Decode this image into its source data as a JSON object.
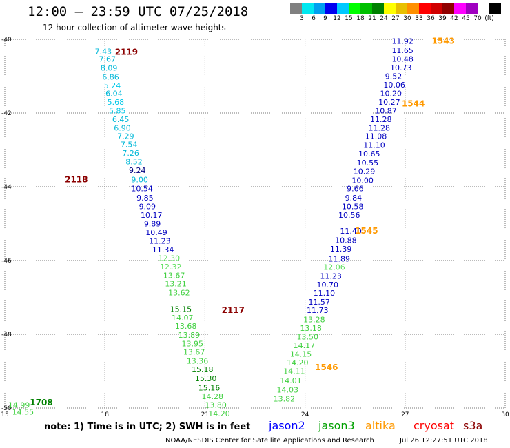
{
  "header": {
    "title": "12:00 – 23:59 UTC 07/25/2018",
    "subtitle": "12 hour collection of altimeter wave heights"
  },
  "scale": {
    "colors": [
      "#808080",
      "#00e8f0",
      "#00a0f0",
      "#0000f0",
      "#00c8ff",
      "#00ff00",
      "#00c000",
      "#008000",
      "#ffff00",
      "#e8c000",
      "#ff9000",
      "#ff0000",
      "#d00000",
      "#900000",
      "#ff00ff",
      "#a000c0",
      "#ffffff",
      "#000000"
    ],
    "labels": [
      "3",
      "6",
      "9",
      "12",
      "15",
      "18",
      "21",
      "24",
      "27",
      "30",
      "33",
      "36",
      "39",
      "42",
      "45",
      "70",
      "(ft)"
    ]
  },
  "chart_data": {
    "type": "scatter",
    "xlim": [
      15,
      30
    ],
    "ylim": [
      -50,
      -40
    ],
    "x_ticks": [
      "15",
      "18",
      "21",
      "24",
      "27",
      "30"
    ],
    "y_ticks": [
      "-40",
      "-42",
      "-44",
      "-46",
      "-48",
      "-50"
    ],
    "passes": [
      {
        "label": "2119",
        "color": "#8b0000",
        "x": 18.3,
        "y": -40.35
      },
      {
        "label": "2118",
        "color": "#8b0000",
        "x": 16.8,
        "y": -43.8
      },
      {
        "label": "2117",
        "color": "#8b0000",
        "x": 21.5,
        "y": -47.35
      },
      {
        "label": "1708",
        "color": "#008000",
        "x": 15.75,
        "y": -49.85
      },
      {
        "label": "1543",
        "color": "#ff9900",
        "x": 27.8,
        "y": -40.05
      },
      {
        "label": "1544",
        "color": "#ff9900",
        "x": 26.9,
        "y": -41.75
      },
      {
        "label": "1545",
        "color": "#ff9900",
        "x": 25.5,
        "y": -45.2
      },
      {
        "label": "1546",
        "color": "#ff9900",
        "x": 24.3,
        "y": -48.9
      }
    ],
    "points": [
      {
        "v": "7.43",
        "x": 17.7,
        "y": -40.33,
        "c": "#00b8d8"
      },
      {
        "v": "7.67",
        "x": 17.82,
        "y": -40.53,
        "c": "#00b8d8"
      },
      {
        "v": "8.09",
        "x": 17.87,
        "y": -40.78,
        "c": "#00b8d8"
      },
      {
        "v": "6.86",
        "x": 17.92,
        "y": -41.02,
        "c": "#00b8d8"
      },
      {
        "v": "5.24",
        "x": 17.97,
        "y": -41.25,
        "c": "#00c8e8"
      },
      {
        "v": "6.04",
        "x": 18.02,
        "y": -41.47,
        "c": "#00b8d8"
      },
      {
        "v": "5.68",
        "x": 18.07,
        "y": -41.7,
        "c": "#00c8e8"
      },
      {
        "v": "5.85",
        "x": 18.12,
        "y": -41.93,
        "c": "#00c8e8"
      },
      {
        "v": "6.45",
        "x": 18.22,
        "y": -42.17,
        "c": "#00b8d8"
      },
      {
        "v": "6.90",
        "x": 18.27,
        "y": -42.4,
        "c": "#00b8d8"
      },
      {
        "v": "7.29",
        "x": 18.37,
        "y": -42.63,
        "c": "#00b8d8"
      },
      {
        "v": "7.54",
        "x": 18.47,
        "y": -42.85,
        "c": "#00b8d8"
      },
      {
        "v": "7.26",
        "x": 18.52,
        "y": -43.08,
        "c": "#00b8d8"
      },
      {
        "v": "8.52",
        "x": 18.62,
        "y": -43.32,
        "c": "#00b8d8"
      },
      {
        "v": "9.24",
        "x": 18.72,
        "y": -43.55,
        "c": "#000080"
      },
      {
        "v": "9.00",
        "x": 18.79,
        "y": -43.8,
        "c": "#00b8d8"
      },
      {
        "v": "10.54",
        "x": 18.79,
        "y": -44.05,
        "c": "#0000c0"
      },
      {
        "v": "9.85",
        "x": 18.95,
        "y": -44.3,
        "c": "#0000c0"
      },
      {
        "v": "9.09",
        "x": 19.02,
        "y": -44.53,
        "c": "#0000c0"
      },
      {
        "v": "10.17",
        "x": 19.07,
        "y": -44.77,
        "c": "#0000c0"
      },
      {
        "v": "9.89",
        "x": 19.17,
        "y": -45.0,
        "c": "#0000c0"
      },
      {
        "v": "10.49",
        "x": 19.22,
        "y": -45.23,
        "c": "#0000c0"
      },
      {
        "v": "11.23",
        "x": 19.32,
        "y": -45.47,
        "c": "#0000c0"
      },
      {
        "v": "11.34",
        "x": 19.42,
        "y": -45.7,
        "c": "#0000c0"
      },
      {
        "v": "12.30",
        "x": 19.6,
        "y": -45.93,
        "c": "#60e060"
      },
      {
        "v": "12.32",
        "x": 19.65,
        "y": -46.17,
        "c": "#60e060"
      },
      {
        "v": "13.67",
        "x": 19.75,
        "y": -46.4,
        "c": "#40d040"
      },
      {
        "v": "13.21",
        "x": 19.8,
        "y": -46.63,
        "c": "#40d040"
      },
      {
        "v": "13.62",
        "x": 19.9,
        "y": -46.87,
        "c": "#40d040"
      },
      {
        "v": "15.15",
        "x": 19.95,
        "y": -47.32,
        "c": "#008000"
      },
      {
        "v": "14.07",
        "x": 20.0,
        "y": -47.55,
        "c": "#40d040"
      },
      {
        "v": "13.68",
        "x": 20.1,
        "y": -47.78,
        "c": "#40d040"
      },
      {
        "v": "13.89",
        "x": 20.2,
        "y": -48.02,
        "c": "#40d040"
      },
      {
        "v": "13.95",
        "x": 20.3,
        "y": -48.25,
        "c": "#40d040"
      },
      {
        "v": "13.67",
        "x": 20.35,
        "y": -48.48,
        "c": "#40d040"
      },
      {
        "v": "13.36",
        "x": 20.45,
        "y": -48.72,
        "c": "#40d040"
      },
      {
        "v": "15.18",
        "x": 20.6,
        "y": -48.95,
        "c": "#008000"
      },
      {
        "v": "15.30",
        "x": 20.7,
        "y": -49.2,
        "c": "#008000"
      },
      {
        "v": "15.16",
        "x": 20.8,
        "y": -49.45,
        "c": "#008000"
      },
      {
        "v": "14.28",
        "x": 20.9,
        "y": -49.68,
        "c": "#40d040"
      },
      {
        "v": "13.80",
        "x": 21.0,
        "y": -49.92,
        "c": "#40d040"
      },
      {
        "v": "14.20",
        "x": 21.1,
        "y": -50.15,
        "c": "#40d040"
      },
      {
        "v": "14.99",
        "x": 15.1,
        "y": -49.92,
        "c": "#40d040"
      },
      {
        "v": "14.55",
        "x": 15.22,
        "y": -50.1,
        "c": "#40d040"
      },
      {
        "v": "11.92",
        "x": 26.6,
        "y": -40.05,
        "c": "#0000c0"
      },
      {
        "v": "11.65",
        "x": 26.6,
        "y": -40.3,
        "c": "#0000c0"
      },
      {
        "v": "10.48",
        "x": 26.6,
        "y": -40.53,
        "c": "#0000c0"
      },
      {
        "v": "10.73",
        "x": 26.55,
        "y": -40.77,
        "c": "#0000c0"
      },
      {
        "v": "9.52",
        "x": 26.4,
        "y": -41.0,
        "c": "#0000c0"
      },
      {
        "v": "10.06",
        "x": 26.35,
        "y": -41.23,
        "c": "#0000c0"
      },
      {
        "v": "10.20",
        "x": 26.25,
        "y": -41.47,
        "c": "#0000c0"
      },
      {
        "v": "10.27",
        "x": 26.2,
        "y": -41.7,
        "c": "#0000c0"
      },
      {
        "v": "10.87",
        "x": 26.1,
        "y": -41.93,
        "c": "#0000c0"
      },
      {
        "v": "11.28",
        "x": 25.95,
        "y": -42.17,
        "c": "#0000c0"
      },
      {
        "v": "11.28",
        "x": 25.9,
        "y": -42.4,
        "c": "#0000c0"
      },
      {
        "v": "11.08",
        "x": 25.8,
        "y": -42.63,
        "c": "#0000c0"
      },
      {
        "v": "11.10",
        "x": 25.75,
        "y": -42.87,
        "c": "#0000c0"
      },
      {
        "v": "10.65",
        "x": 25.6,
        "y": -43.1,
        "c": "#0000c0"
      },
      {
        "v": "10.55",
        "x": 25.55,
        "y": -43.35,
        "c": "#0000c0"
      },
      {
        "v": "10.29",
        "x": 25.45,
        "y": -43.58,
        "c": "#0000c0"
      },
      {
        "v": "10.00",
        "x": 25.4,
        "y": -43.82,
        "c": "#0000c0"
      },
      {
        "v": "9.66",
        "x": 25.25,
        "y": -44.05,
        "c": "#0000c0"
      },
      {
        "v": "9.84",
        "x": 25.2,
        "y": -44.3,
        "c": "#0000c0"
      },
      {
        "v": "10.58",
        "x": 25.1,
        "y": -44.53,
        "c": "#0000c0"
      },
      {
        "v": "10.56",
        "x": 25.0,
        "y": -44.77,
        "c": "#0000c0"
      },
      {
        "v": "11.40",
        "x": 25.05,
        "y": -45.2,
        "c": "#0000c0"
      },
      {
        "v": "10.88",
        "x": 24.9,
        "y": -45.45,
        "c": "#0000c0"
      },
      {
        "v": "11.39",
        "x": 24.75,
        "y": -45.68,
        "c": "#0000c0"
      },
      {
        "v": "11.89",
        "x": 24.7,
        "y": -45.95,
        "c": "#0000c0"
      },
      {
        "v": "12.06",
        "x": 24.55,
        "y": -46.18,
        "c": "#60e060"
      },
      {
        "v": "11.23",
        "x": 24.45,
        "y": -46.42,
        "c": "#0000c0"
      },
      {
        "v": "10.70",
        "x": 24.35,
        "y": -46.65,
        "c": "#0000c0"
      },
      {
        "v": "11.10",
        "x": 24.25,
        "y": -46.88,
        "c": "#0000c0"
      },
      {
        "v": "11.57",
        "x": 24.1,
        "y": -47.12,
        "c": "#0000c0"
      },
      {
        "v": "11.73",
        "x": 24.05,
        "y": -47.35,
        "c": "#0000c0"
      },
      {
        "v": "13.28",
        "x": 23.95,
        "y": -47.6,
        "c": "#40d040"
      },
      {
        "v": "13.18",
        "x": 23.85,
        "y": -47.83,
        "c": "#40d040"
      },
      {
        "v": "13.50",
        "x": 23.75,
        "y": -48.07,
        "c": "#40d040"
      },
      {
        "v": "14.17",
        "x": 23.65,
        "y": -48.3,
        "c": "#40d040"
      },
      {
        "v": "14.15",
        "x": 23.55,
        "y": -48.53,
        "c": "#40d040"
      },
      {
        "v": "14.20",
        "x": 23.45,
        "y": -48.77,
        "c": "#40d040"
      },
      {
        "v": "14.11",
        "x": 23.35,
        "y": -49.0,
        "c": "#40d040"
      },
      {
        "v": "14.01",
        "x": 23.25,
        "y": -49.25,
        "c": "#40d040"
      },
      {
        "v": "14.03",
        "x": 23.15,
        "y": -49.5,
        "c": "#40d040"
      },
      {
        "v": "13.82",
        "x": 23.05,
        "y": -49.75,
        "c": "#40d040"
      }
    ]
  },
  "note": "note: 1) Time is in UTC; 2) SWH is in feet",
  "legend": [
    {
      "label": "jason2",
      "color": "#0000ff"
    },
    {
      "label": "jason3",
      "color": "#00a000"
    },
    {
      "label": "altika",
      "color": "#ff9900"
    },
    {
      "label": "cryosat",
      "color": "#ff0000"
    },
    {
      "label": "s3a",
      "color": "#8b0000"
    }
  ],
  "footer": {
    "credit": "NOAA/NESDIS Center for Satellite Applications and Research",
    "timestamp": "Jul 26 12:27:51 UTC 2018"
  }
}
